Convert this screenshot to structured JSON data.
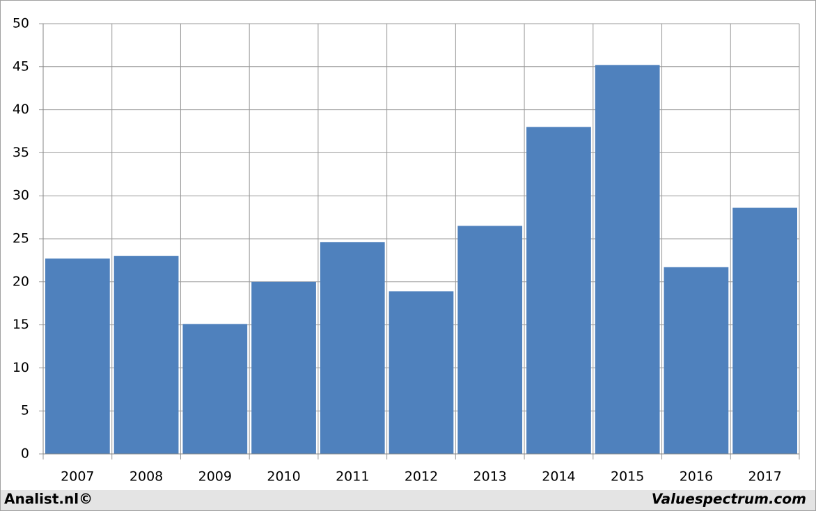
{
  "chart_data": {
    "type": "bar",
    "categories": [
      "2007",
      "2008",
      "2009",
      "2010",
      "2011",
      "2012",
      "2013",
      "2014",
      "2015",
      "2016",
      "2017"
    ],
    "values": [
      22.7,
      23.0,
      15.1,
      20.0,
      24.6,
      18.9,
      26.5,
      38.0,
      45.2,
      21.7,
      28.6
    ],
    "color": "#4f81bd",
    "ylim": [
      0,
      50
    ],
    "yticks": [
      0,
      5,
      10,
      15,
      20,
      25,
      30,
      35,
      40,
      45,
      50
    ],
    "grid": true,
    "footer_left": "Analist.nl©",
    "footer_right": "Valuespectrum.com"
  }
}
